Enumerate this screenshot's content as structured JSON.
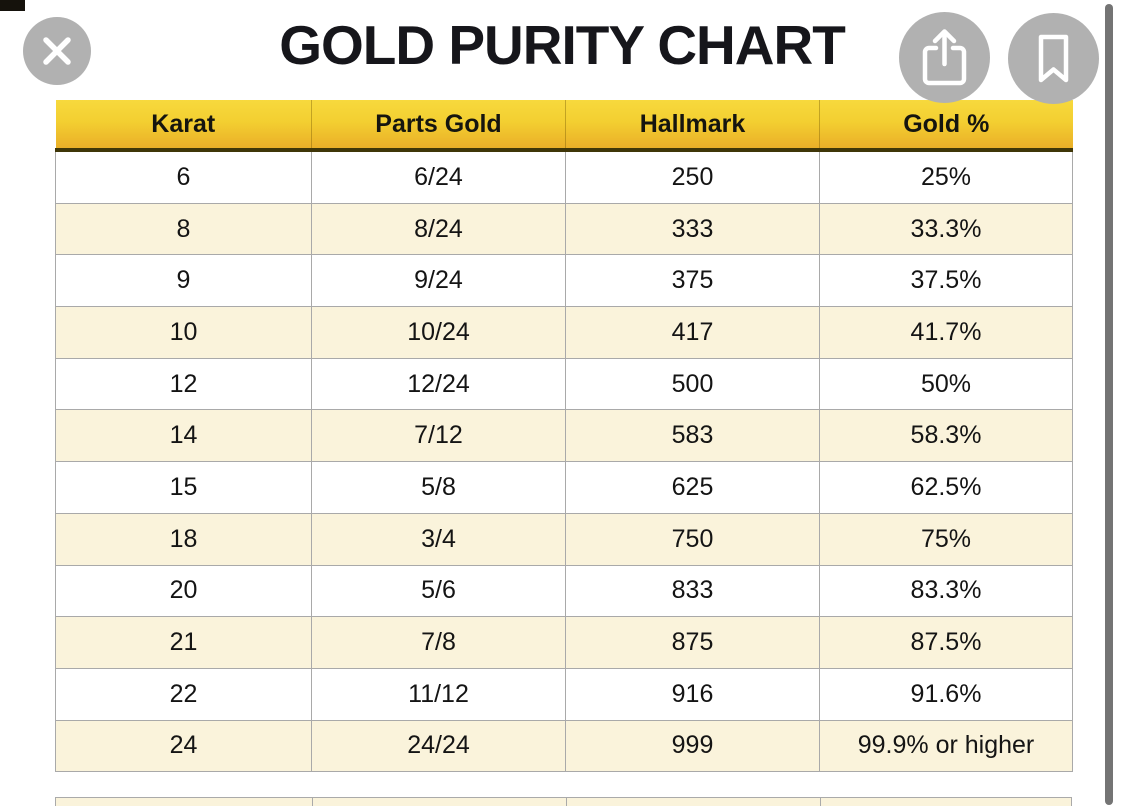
{
  "page": {
    "title": "GOLD PURITY CHART"
  },
  "toolbar": {
    "close_icon": "close-x",
    "share_icon": "share-up-arrow",
    "bookmark_icon": "bookmark-outline"
  },
  "chart_data": {
    "type": "table",
    "title": "GOLD PURITY CHART",
    "columns": [
      "Karat",
      "Parts Gold",
      "Hallmark",
      "Gold %"
    ],
    "rows": [
      [
        "6",
        "6/24",
        "250",
        "25%"
      ],
      [
        "8",
        "8/24",
        "333",
        "33.3%"
      ],
      [
        "9",
        "9/24",
        "375",
        "37.5%"
      ],
      [
        "10",
        "10/24",
        "417",
        "41.7%"
      ],
      [
        "12",
        "12/24",
        "500",
        "50%"
      ],
      [
        "14",
        "7/12",
        "583",
        "58.3%"
      ],
      [
        "15",
        "5/8",
        "625",
        "62.5%"
      ],
      [
        "18",
        "3/4",
        "750",
        "75%"
      ],
      [
        "20",
        "5/6",
        "833",
        "83.3%"
      ],
      [
        "21",
        "7/8",
        "875",
        "87.5%"
      ],
      [
        "22",
        "11/12",
        "916",
        "91.6%"
      ],
      [
        "24",
        "24/24",
        "999",
        "99.9% or higher"
      ]
    ],
    "layout": {
      "zebra_row_colors": [
        "#ffffff",
        "#faf3db"
      ],
      "header_background": "gold gradient",
      "grid": "on"
    }
  },
  "colors": {
    "header_gold_top": "#f7d93d",
    "header_gold_bottom": "#eaaf28",
    "header_bottom_border": "#3f3608",
    "row_cream": "#faf3db",
    "row_white": "#ffffff",
    "grid_line": "#a9a9a9",
    "button_gray": "#b1b1b1",
    "scrollbar_gray": "#747474",
    "title_color": "#16161b"
  }
}
